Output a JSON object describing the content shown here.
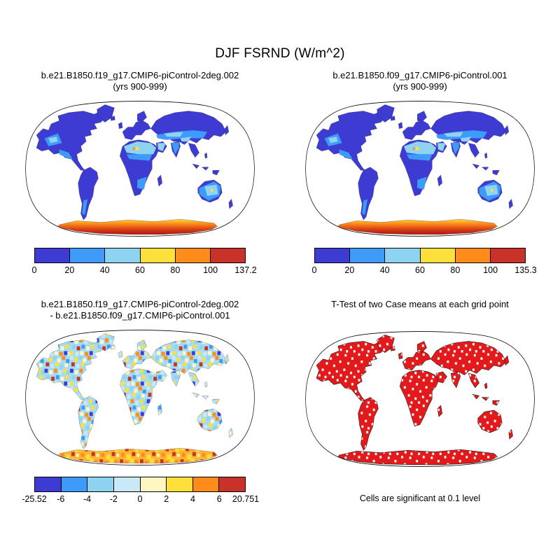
{
  "title": "DJF FSRND (W/m^2)",
  "panels": {
    "top_left": {
      "title_line1": "b.e21.B1850.f19_g17.CMIP6-piControl-2deg.002",
      "title_line2": "(yrs 900-999)"
    },
    "top_right": {
      "title_line1": "b.e21.B1850.f09_g17.CMIP6-piControl.001",
      "title_line2": "(yrs 900-999)"
    },
    "bottom_left": {
      "title_line1": "b.e21.B1850.f19_g17.CMIP6-piControl-2deg.002",
      "title_line2": "- b.e21.B1850.f09_g17.CMIP6-piControl.001"
    },
    "bottom_right": {
      "title": "T-Test of two Case means at each grid point",
      "footnote": "Cells are significant at 0.1 level"
    }
  },
  "chart_data": [
    {
      "type": "heatmap",
      "projection": "robinson",
      "season": "DJF",
      "variable": "FSRND",
      "units": "W/m^2",
      "title": "b.e21.B1850.f19_g17.CMIP6-piControl-2deg.002 (yrs 900-999)",
      "min": 0,
      "max": 137.2,
      "colorbar": {
        "levels": [
          "0",
          "20",
          "40",
          "60",
          "80",
          "100",
          "137.2"
        ],
        "colors": [
          "#3d3bd1",
          "#3f9bfa",
          "#8ed3f2",
          "#ffe03a",
          "#ff8c1a",
          "#c83228"
        ]
      }
    },
    {
      "type": "heatmap",
      "projection": "robinson",
      "season": "DJF",
      "variable": "FSRND",
      "units": "W/m^2",
      "title": "b.e21.B1850.f09_g17.CMIP6-piControl.001 (yrs 900-999)",
      "min": 0,
      "max": 135.3,
      "colorbar": {
        "levels": [
          "0",
          "20",
          "40",
          "60",
          "80",
          "100",
          "135.3"
        ],
        "colors": [
          "#3d3bd1",
          "#3f9bfa",
          "#8ed3f2",
          "#ffe03a",
          "#ff8c1a",
          "#c83228"
        ]
      }
    },
    {
      "type": "heatmap",
      "projection": "robinson",
      "season": "DJF",
      "variable": "FSRND difference",
      "units": "W/m^2",
      "title": "b.e21.B1850.f19_g17.CMIP6-piControl-2deg.002 - b.e21.B1850.f09_g17.CMIP6-piControl.001",
      "min": -25.52,
      "max": 20.751,
      "colorbar": {
        "levels": [
          "-25.52",
          "-6",
          "-4",
          "-2",
          "0",
          "2",
          "4",
          "6",
          "20.751"
        ],
        "colors": [
          "#3d3bd1",
          "#3f9bfa",
          "#8ed3f2",
          "#c9e9f8",
          "#fff7bf",
          "#ffe03a",
          "#ff8c1a",
          "#c83228"
        ]
      }
    },
    {
      "type": "significance-map",
      "projection": "robinson",
      "title": "T-Test of two Case means at each grid point",
      "significance_level": 0.1,
      "significant_color": "#e31a1c",
      "note": "Cells are significant at 0.1 level"
    }
  ]
}
